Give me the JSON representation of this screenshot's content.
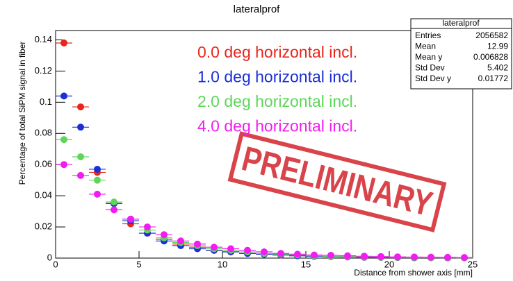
{
  "chart_data": {
    "type": "scatter",
    "title": "lateralprof",
    "x_label": "Distance from shower axis [mm]",
    "y_label": "Percentage of total SiPM signal in fiber",
    "x": [
      0.5,
      1.5,
      2.5,
      3.5,
      4.5,
      5.5,
      6.5,
      7.5,
      8.5,
      9.5,
      10.5,
      11.5,
      12.5,
      13.5,
      14.5,
      15.5,
      16.5,
      17.5,
      18.5,
      19.5,
      20.5,
      21.5,
      22.5,
      23.5,
      24.5
    ],
    "x_err": 0.5,
    "series": [
      {
        "name": "0.0 deg horizontal incl.",
        "color": "#e8261c",
        "values": [
          0.138,
          0.097,
          0.055,
          0.035,
          0.022,
          0.016,
          0.012,
          0.009,
          0.007,
          0.005,
          0.004,
          0.003,
          0.0025,
          0.002,
          0.0015,
          0.0012,
          0.001,
          0.0008,
          0.0006,
          0.0005,
          0.0004,
          0.0003,
          0.0003,
          0.0002,
          0.0002
        ]
      },
      {
        "name": "1.0 deg horizontal incl.",
        "color": "#1c2fd6",
        "values": [
          0.104,
          0.084,
          0.057,
          0.035,
          0.024,
          0.016,
          0.011,
          0.008,
          0.006,
          0.005,
          0.004,
          0.003,
          0.0025,
          0.002,
          0.0015,
          0.0012,
          0.001,
          0.0008,
          0.0006,
          0.0005,
          0.0004,
          0.0003,
          0.0003,
          0.0002,
          0.0002
        ]
      },
      {
        "name": "2.0 deg horizontal incl.",
        "color": "#5ed65a",
        "values": [
          0.076,
          0.065,
          0.05,
          0.036,
          0.025,
          0.018,
          0.013,
          0.01,
          0.008,
          0.006,
          0.005,
          0.004,
          0.003,
          0.0025,
          0.002,
          0.0015,
          0.0012,
          0.001,
          0.0008,
          0.0006,
          0.0005,
          0.0004,
          0.0003,
          0.0003,
          0.0002
        ]
      },
      {
        "name": "4.0 deg horizontal incl.",
        "color": "#f21cf0",
        "values": [
          0.06,
          0.053,
          0.041,
          0.031,
          0.025,
          0.02,
          0.015,
          0.011,
          0.009,
          0.007,
          0.006,
          0.005,
          0.004,
          0.003,
          0.0025,
          0.002,
          0.0018,
          0.0015,
          0.0012,
          0.001,
          0.0008,
          0.0007,
          0.0006,
          0.0005,
          0.0004
        ]
      }
    ],
    "xlim": [
      0,
      25
    ],
    "xticks": [
      0,
      5,
      10,
      15,
      20,
      25
    ],
    "ylim": [
      0,
      0.146
    ],
    "yticks": [
      0,
      0.02,
      0.04,
      0.06,
      0.08,
      0.1,
      0.12,
      0.14
    ],
    "annotation": "PRELIMINARY",
    "stats": {
      "title": "lateralprof",
      "rows": [
        [
          "Entries",
          "2056582"
        ],
        [
          "Mean",
          "12.99"
        ],
        [
          "Mean y",
          "0.006828"
        ],
        [
          "Std Dev",
          "5.402"
        ],
        [
          "Std Dev y",
          "0.01772"
        ]
      ]
    }
  }
}
